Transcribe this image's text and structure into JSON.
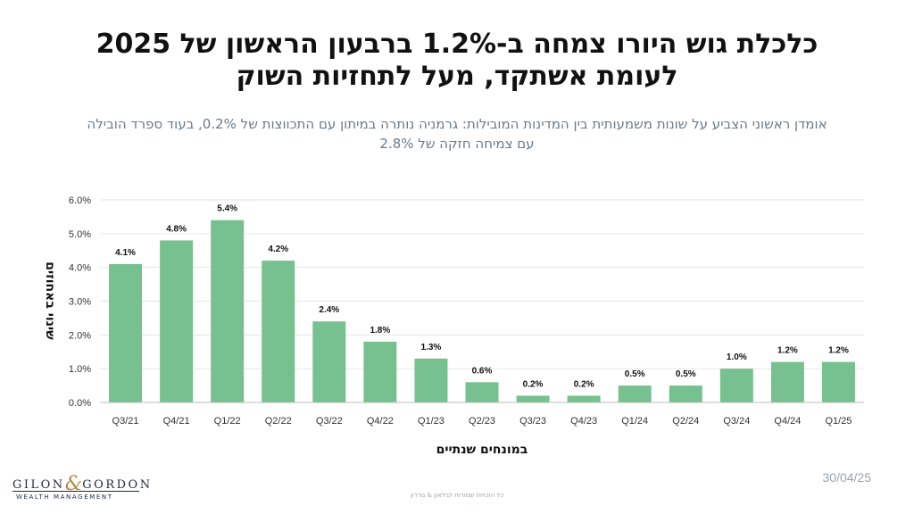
{
  "header": {
    "title_line1": "כלכלת גוש היורו צמחה ב-1.2% ברבעון הראשון של 2025",
    "title_line2": "לעומת אשתקד, מעל לתחזיות השוק",
    "subtitle_line1": "אומדן ראשוני הצביע על שונות משמעותית בין המדינות המובילות: גרמניה נותרה במיתון עם התכווצות של 0.2%, בעוד ספרד הובילה",
    "subtitle_line2": "עם צמיחה חזקה של 2.8%"
  },
  "footer": {
    "date": "30/04/25",
    "disclaimer": "כל הזכויות שמורות לגילאון & גורדון",
    "logo_name_left": "GILON",
    "logo_amp": "&",
    "logo_name_right": "GORDON",
    "logo_sub": "WEALTH MANAGEMENT"
  },
  "colors": {
    "bar": "#77c08f",
    "grid": "#e6e6e6",
    "axis_text": "#333333",
    "value_label": "#111111"
  },
  "chart_data": {
    "type": "bar",
    "categories": [
      "Q3/21",
      "Q4/21",
      "Q1/22",
      "Q2/22",
      "Q3/22",
      "Q4/22",
      "Q1/23",
      "Q2/23",
      "Q3/23",
      "Q4/23",
      "Q1/24",
      "Q2/24",
      "Q3/24",
      "Q4/24",
      "Q1/25"
    ],
    "values": [
      4.1,
      4.8,
      5.4,
      4.2,
      2.4,
      1.8,
      1.3,
      0.6,
      0.2,
      0.2,
      0.5,
      0.5,
      1.0,
      1.2,
      1.2
    ],
    "value_labels": [
      "4.1%",
      "4.8%",
      "5.4%",
      "4.2%",
      "2.4%",
      "1.8%",
      "1.3%",
      "0.6%",
      "0.2%",
      "0.2%",
      "0.5%",
      "0.5%",
      "1.0%",
      "1.2%",
      "1.2%"
    ],
    "y_ticks": [
      0,
      1,
      2,
      3,
      4,
      5,
      6
    ],
    "y_tick_labels": [
      "0.0%",
      "1.0%",
      "2.0%",
      "3.0%",
      "4.0%",
      "5.0%",
      "6.0%"
    ],
    "ylim": [
      0,
      6
    ],
    "xlabel": "במונחים שנתיים",
    "ylabel": "שינוי באחוזים",
    "grid": true
  }
}
